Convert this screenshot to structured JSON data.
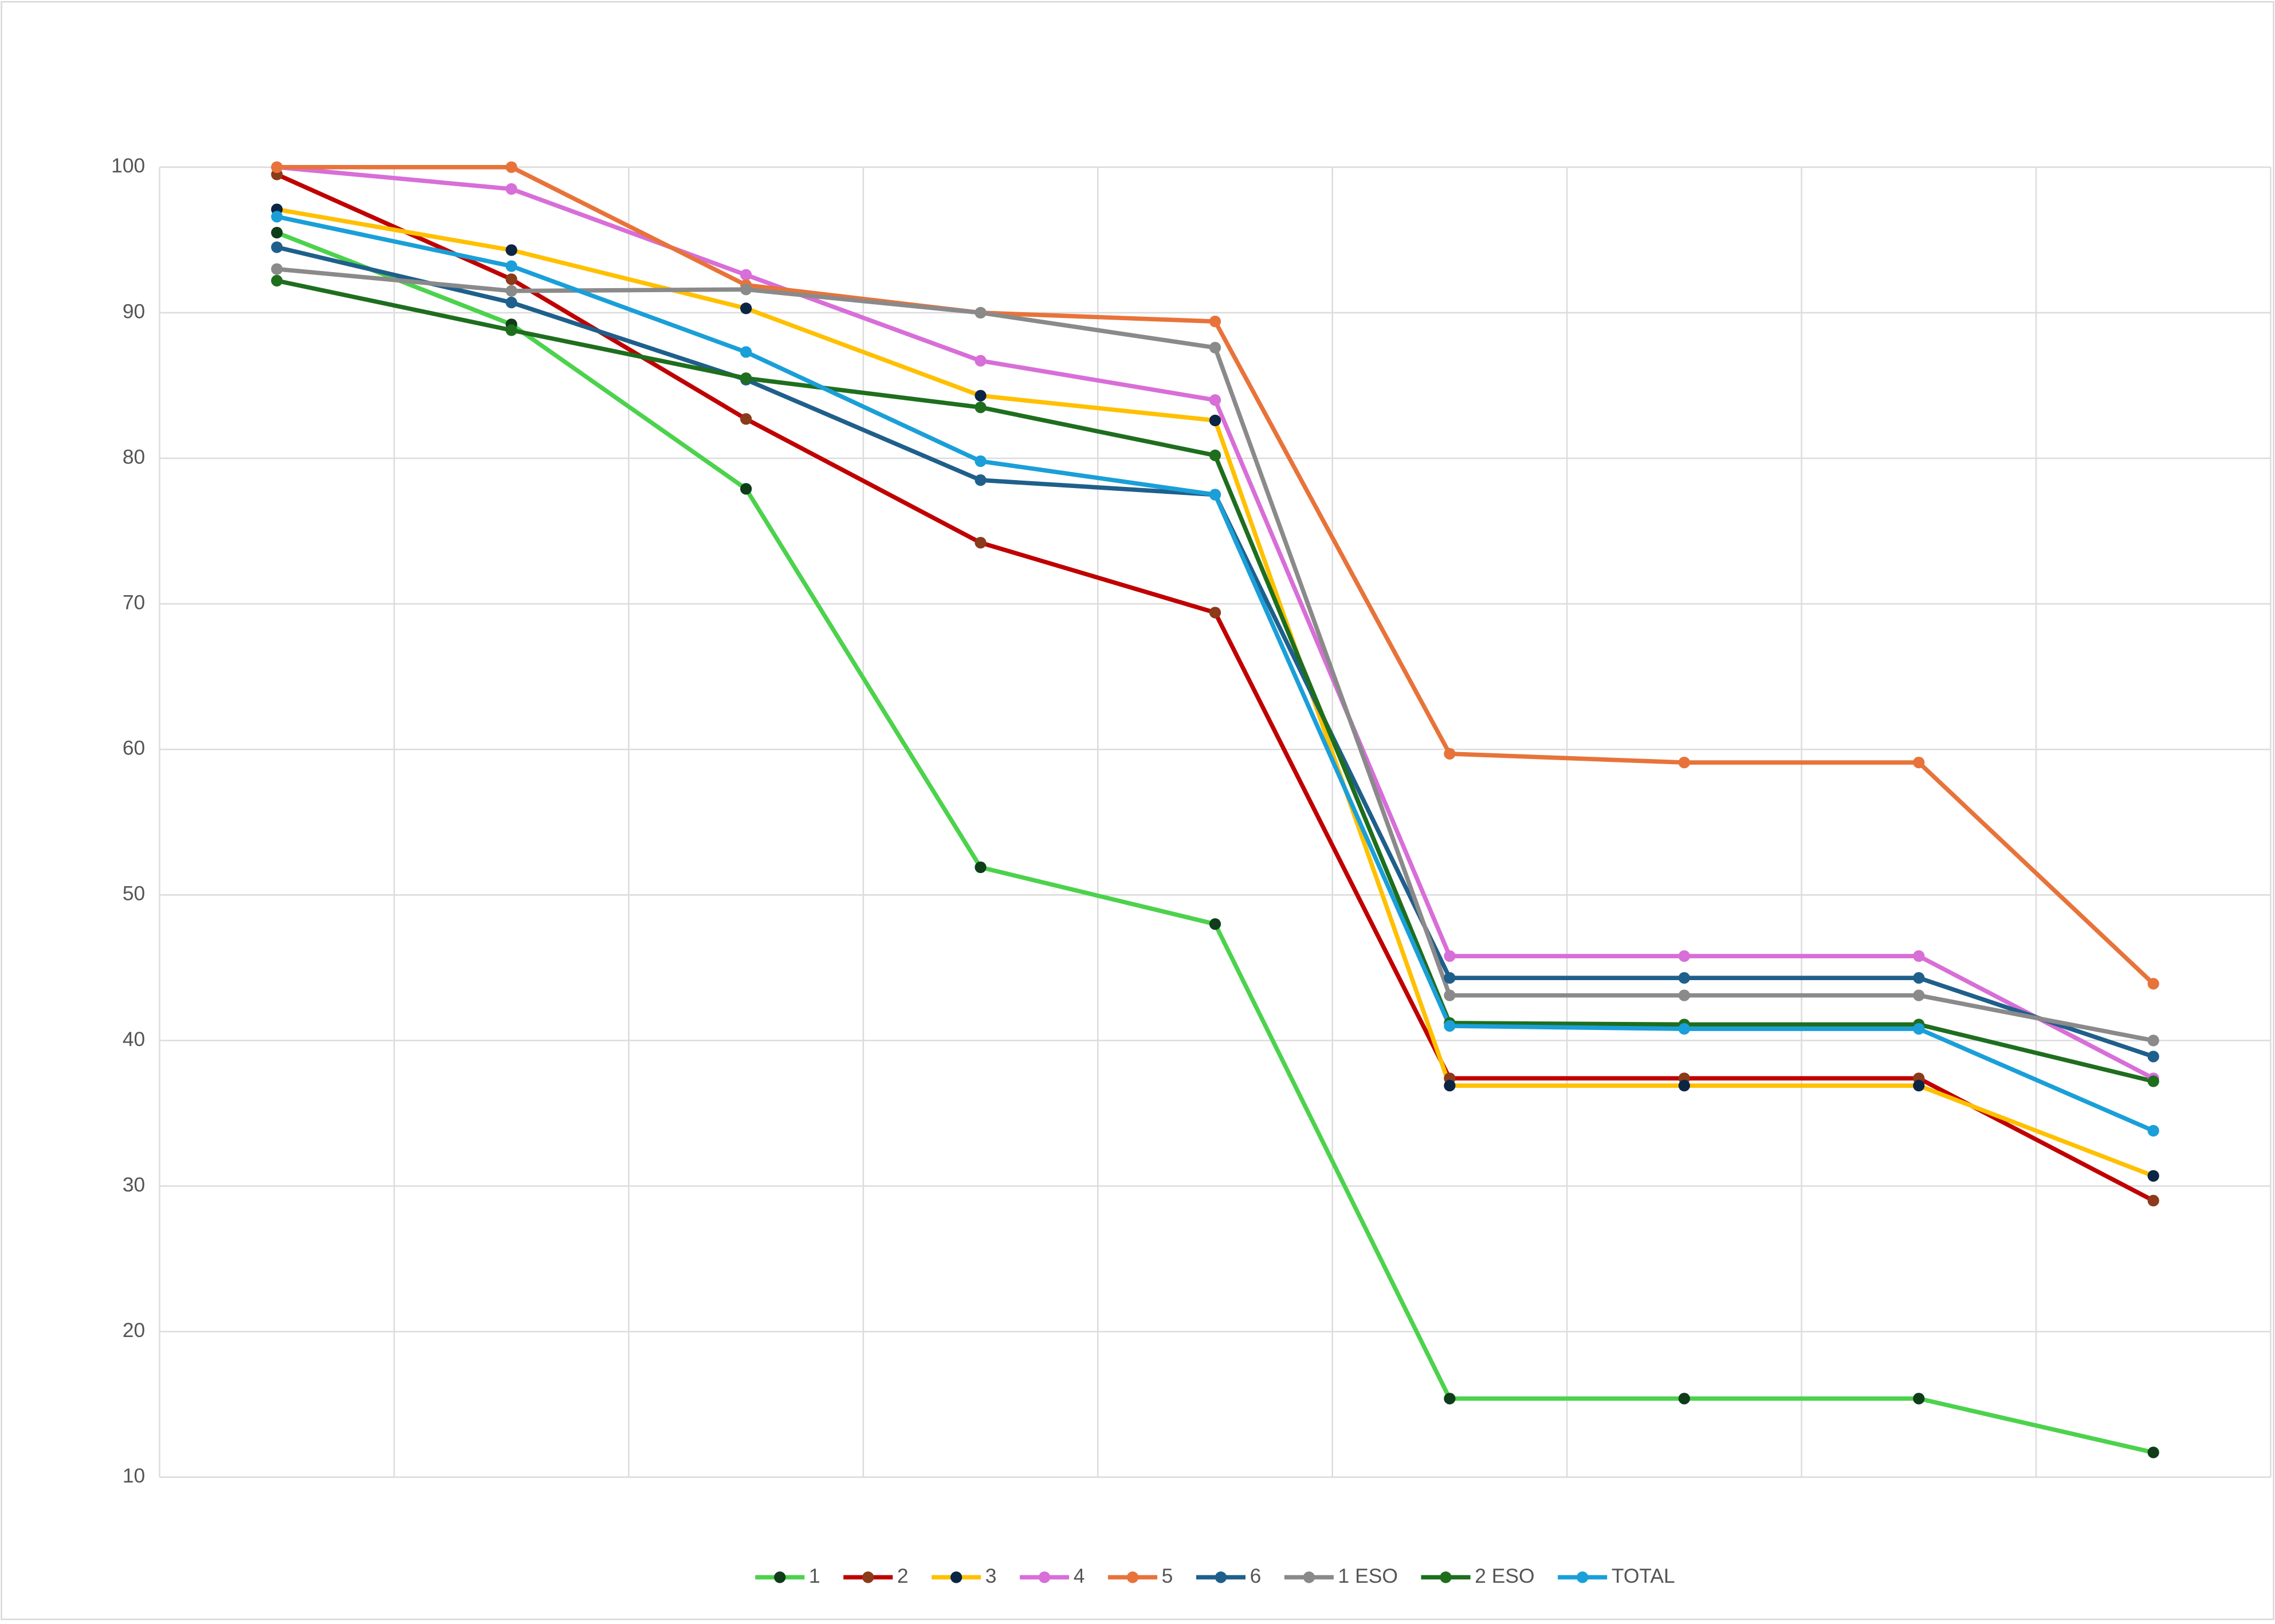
{
  "chart_data": {
    "type": "line",
    "categories": [
      null,
      null,
      null,
      null,
      null,
      null,
      null,
      null,
      null
    ],
    "ylim": [
      10,
      100
    ],
    "yticks": [
      10,
      20,
      30,
      40,
      50,
      60,
      70,
      80,
      90,
      100
    ],
    "grid": true,
    "legend": "bottom",
    "series": [
      {
        "name": "1",
        "color": "#4cd24c",
        "marker_color": "#0f3d1a",
        "values": [
          95.5,
          89.2,
          77.9,
          51.9,
          48.0,
          15.4,
          15.4,
          15.4,
          11.7
        ]
      },
      {
        "name": "2",
        "color": "#c00000",
        "marker_color": "#8b3a1a",
        "values": [
          99.5,
          92.3,
          82.7,
          74.2,
          69.4,
          37.4,
          37.4,
          37.4,
          29.0
        ]
      },
      {
        "name": "3",
        "color": "#ffc000",
        "marker_color": "#0b2545",
        "values": [
          97.1,
          94.3,
          90.3,
          84.3,
          82.6,
          36.9,
          36.9,
          36.9,
          30.7
        ]
      },
      {
        "name": "4",
        "color": "#d86ed8",
        "marker_color": "#d86ed8",
        "values": [
          100,
          98.5,
          92.6,
          86.7,
          84.0,
          45.8,
          45.8,
          45.8,
          37.4
        ]
      },
      {
        "name": "5",
        "color": "#e8733a",
        "marker_color": "#e8733a",
        "values": [
          100,
          100,
          91.9,
          90.0,
          89.4,
          59.7,
          59.1,
          59.1,
          43.9
        ]
      },
      {
        "name": "6",
        "color": "#1f5f8b",
        "marker_color": "#1f5f8b",
        "values": [
          94.5,
          90.7,
          85.4,
          78.5,
          77.5,
          44.3,
          44.3,
          44.3,
          38.9
        ]
      },
      {
        "name": "1 ESO",
        "color": "#8a8a8a",
        "marker_color": "#8a8a8a",
        "values": [
          93.0,
          91.5,
          91.6,
          90.0,
          87.6,
          43.1,
          43.1,
          43.1,
          40.0
        ]
      },
      {
        "name": "2 ESO",
        "color": "#1e6e1e",
        "marker_color": "#1e6e1e",
        "values": [
          92.2,
          88.8,
          85.5,
          83.5,
          80.2,
          41.2,
          41.1,
          41.1,
          37.2
        ]
      },
      {
        "name": "TOTAL",
        "color": "#1a9fd8",
        "marker_color": "#1a9fd8",
        "values": [
          96.6,
          93.2,
          87.3,
          79.8,
          77.5,
          41.0,
          40.8,
          40.8,
          33.8
        ]
      }
    ]
  }
}
